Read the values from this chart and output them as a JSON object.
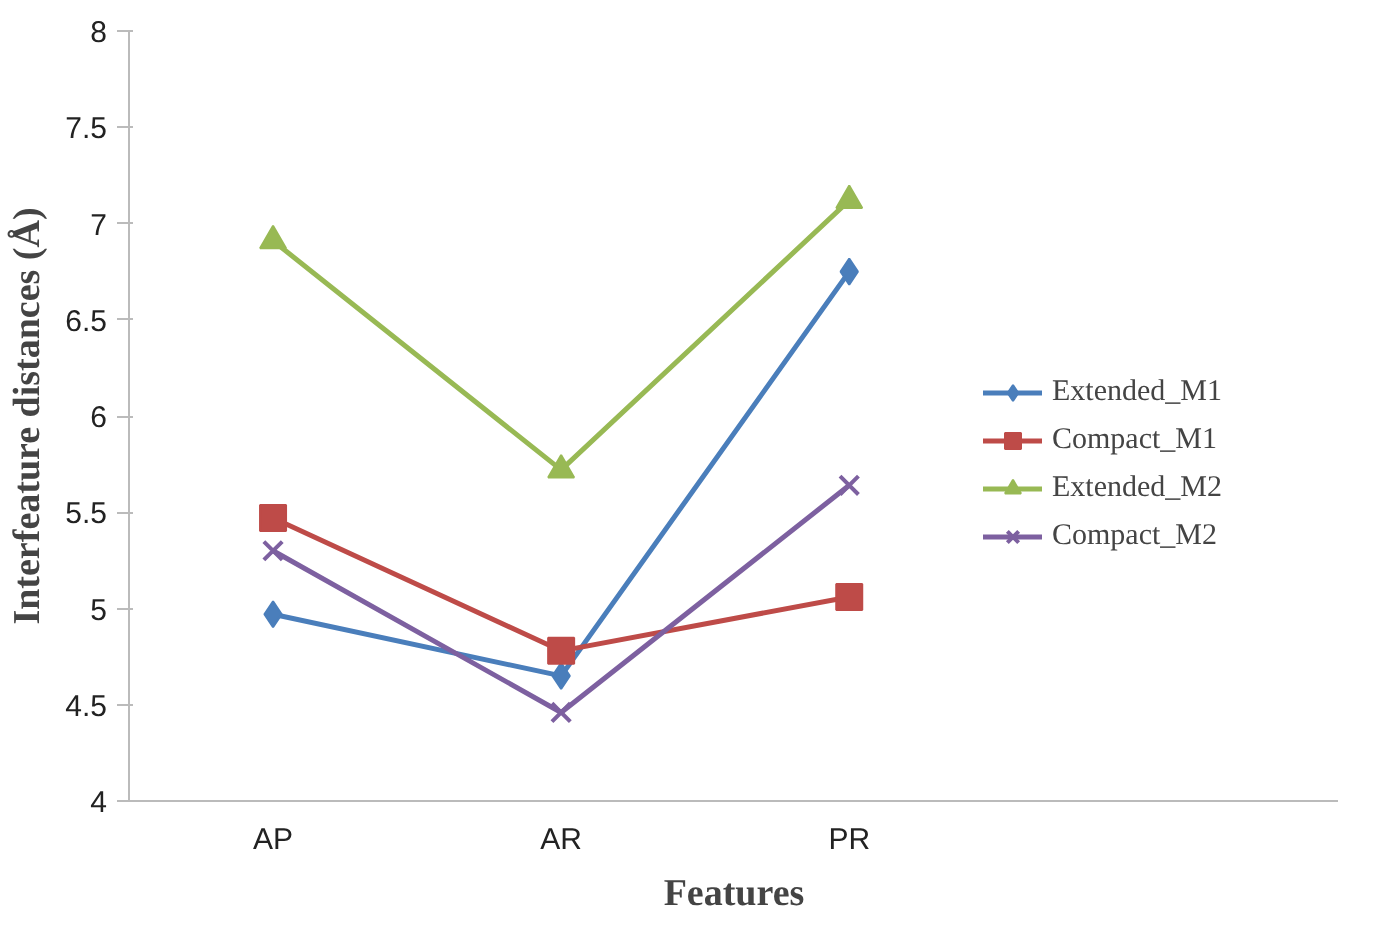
{
  "chart_data": {
    "type": "line",
    "xlabel": "Features",
    "ylabel": "Interfeature distances (Å)",
    "categories": [
      "AP",
      "AR",
      "PR"
    ],
    "series": [
      {
        "name": "Extended_M1",
        "color": "#4a7ebb",
        "marker": "diamond",
        "values": [
          4.97,
          4.65,
          6.75
        ]
      },
      {
        "name": "Compact_M1",
        "color": "#be4b48",
        "marker": "square",
        "values": [
          5.47,
          4.78,
          5.06
        ]
      },
      {
        "name": "Extended_M2",
        "color": "#98b954",
        "marker": "triangle",
        "values": [
          6.91,
          5.72,
          7.12
        ]
      },
      {
        "name": "Compact_M2",
        "color": "#7d60a0",
        "marker": "cross",
        "values": [
          5.3,
          4.46,
          5.64
        ]
      }
    ],
    "ylim": [
      4,
      8
    ],
    "yticks": [
      4,
      4.5,
      5,
      5.5,
      6,
      6.5,
      7,
      7.5,
      8
    ],
    "grid": false,
    "legend": "right"
  }
}
